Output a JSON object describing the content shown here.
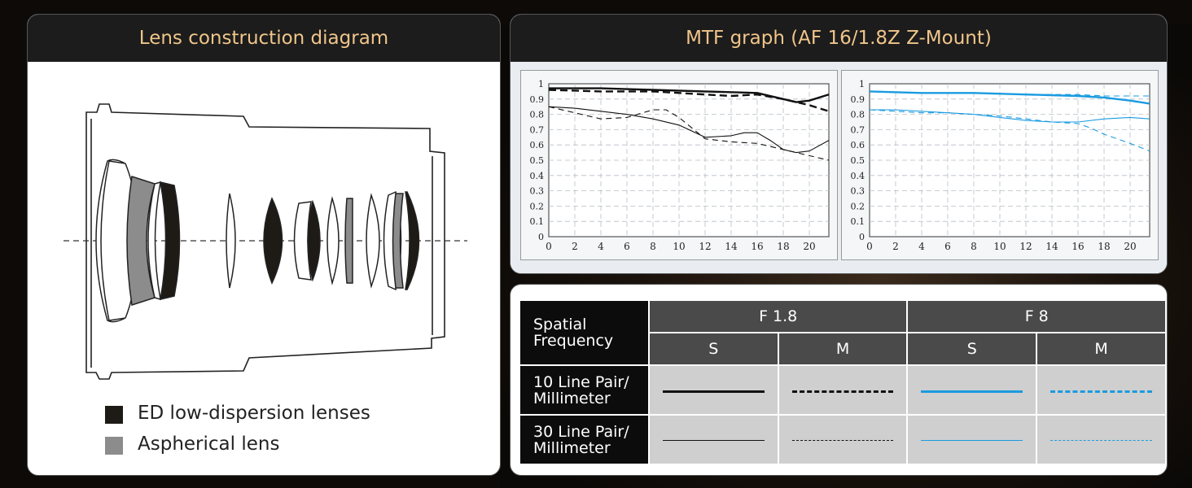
{
  "left_panel": {
    "title": "Lens construction diagram",
    "legend": [
      {
        "label": "ED low-dispersion lenses",
        "color": "#1e1a16"
      },
      {
        "label": "Aspherical lens",
        "color": "#8c8c8c"
      }
    ]
  },
  "right_panel": {
    "title": "MTF graph (AF 16/1.8Z Z-Mount)"
  },
  "table": {
    "header": "Spatial\nFrequency",
    "apertures": [
      "F 1.8",
      "F 8"
    ],
    "sub": [
      "S",
      "M",
      "S",
      "M"
    ],
    "rows": [
      "10 Line Pair/\nMillimeter",
      "30 Line Pair/\nMillimeter"
    ],
    "colors": {
      "f18": "#111111",
      "f8": "#1a9be0"
    }
  },
  "chart_data": [
    {
      "type": "line",
      "title": "",
      "xlabel": "",
      "ylabel": "",
      "xlim": [
        0,
        21.5
      ],
      "ylim": [
        0,
        1
      ],
      "xticks": [
        0,
        2,
        4,
        6,
        8,
        10,
        12,
        14,
        16,
        18,
        20
      ],
      "yticks": [
        "0",
        "0.1",
        "0.2",
        "0.3",
        "0.4",
        "0.5",
        "0.6",
        "0.7",
        "0.8",
        "0.9",
        "1"
      ],
      "grid": true,
      "series": [
        {
          "style": "solid",
          "weight": "thick",
          "color": "#111111",
          "x": [
            0,
            4,
            8,
            12,
            16,
            18,
            19,
            20,
            21.5
          ],
          "y": [
            0.97,
            0.97,
            0.96,
            0.95,
            0.94,
            0.9,
            0.88,
            0.89,
            0.93
          ]
        },
        {
          "style": "dashed",
          "weight": "thick",
          "color": "#111111",
          "x": [
            0,
            4,
            8,
            12,
            14,
            16,
            18,
            20,
            21.5
          ],
          "y": [
            0.96,
            0.95,
            0.95,
            0.93,
            0.92,
            0.93,
            0.9,
            0.86,
            0.82
          ]
        },
        {
          "style": "solid",
          "weight": "thin",
          "color": "#111111",
          "x": [
            0,
            2,
            4,
            6,
            8,
            10,
            12,
            14,
            15,
            16,
            17,
            18,
            19,
            20,
            21.5
          ],
          "y": [
            0.85,
            0.84,
            0.82,
            0.8,
            0.77,
            0.73,
            0.65,
            0.66,
            0.68,
            0.68,
            0.63,
            0.57,
            0.55,
            0.56,
            0.63
          ]
        },
        {
          "style": "dashed",
          "weight": "thin",
          "color": "#111111",
          "x": [
            0,
            2,
            4,
            6,
            8,
            9,
            10,
            12,
            14,
            16,
            18,
            20,
            21.5
          ],
          "y": [
            0.85,
            0.81,
            0.77,
            0.78,
            0.83,
            0.83,
            0.78,
            0.64,
            0.62,
            0.61,
            0.57,
            0.53,
            0.5
          ]
        }
      ]
    },
    {
      "type": "line",
      "title": "",
      "xlabel": "",
      "ylabel": "",
      "xlim": [
        0,
        21.5
      ],
      "ylim": [
        0,
        1
      ],
      "xticks": [
        0,
        2,
        4,
        6,
        8,
        10,
        12,
        14,
        16,
        18,
        20
      ],
      "yticks": [
        "0",
        "0.1",
        "0.2",
        "0.3",
        "0.4",
        "0.5",
        "0.6",
        "0.7",
        "0.8",
        "0.9",
        "1"
      ],
      "grid": true,
      "series": [
        {
          "style": "solid",
          "weight": "thick",
          "color": "#1a9be0",
          "x": [
            0,
            4,
            8,
            12,
            16,
            18,
            20,
            21.5
          ],
          "y": [
            0.95,
            0.94,
            0.94,
            0.93,
            0.92,
            0.91,
            0.89,
            0.87
          ]
        },
        {
          "style": "dashed",
          "weight": "thin",
          "color": "#1a9be0",
          "x": [
            0,
            4,
            8,
            12,
            16,
            18,
            20,
            21.5
          ],
          "y": [
            0.95,
            0.94,
            0.94,
            0.93,
            0.93,
            0.92,
            0.92,
            0.92
          ]
        },
        {
          "style": "solid",
          "weight": "thin",
          "color": "#1a9be0",
          "x": [
            0,
            2,
            4,
            6,
            8,
            10,
            12,
            14,
            16,
            18,
            20,
            21.5
          ],
          "y": [
            0.83,
            0.83,
            0.82,
            0.81,
            0.8,
            0.78,
            0.76,
            0.75,
            0.75,
            0.77,
            0.78,
            0.77
          ]
        },
        {
          "style": "dashed",
          "weight": "thin",
          "color": "#1a9be0",
          "x": [
            0,
            2,
            4,
            6,
            8,
            10,
            12,
            14,
            16,
            17,
            18,
            20,
            21.5
          ],
          "y": [
            0.83,
            0.82,
            0.81,
            0.81,
            0.8,
            0.79,
            0.77,
            0.75,
            0.74,
            0.71,
            0.67,
            0.61,
            0.56
          ]
        }
      ]
    }
  ]
}
